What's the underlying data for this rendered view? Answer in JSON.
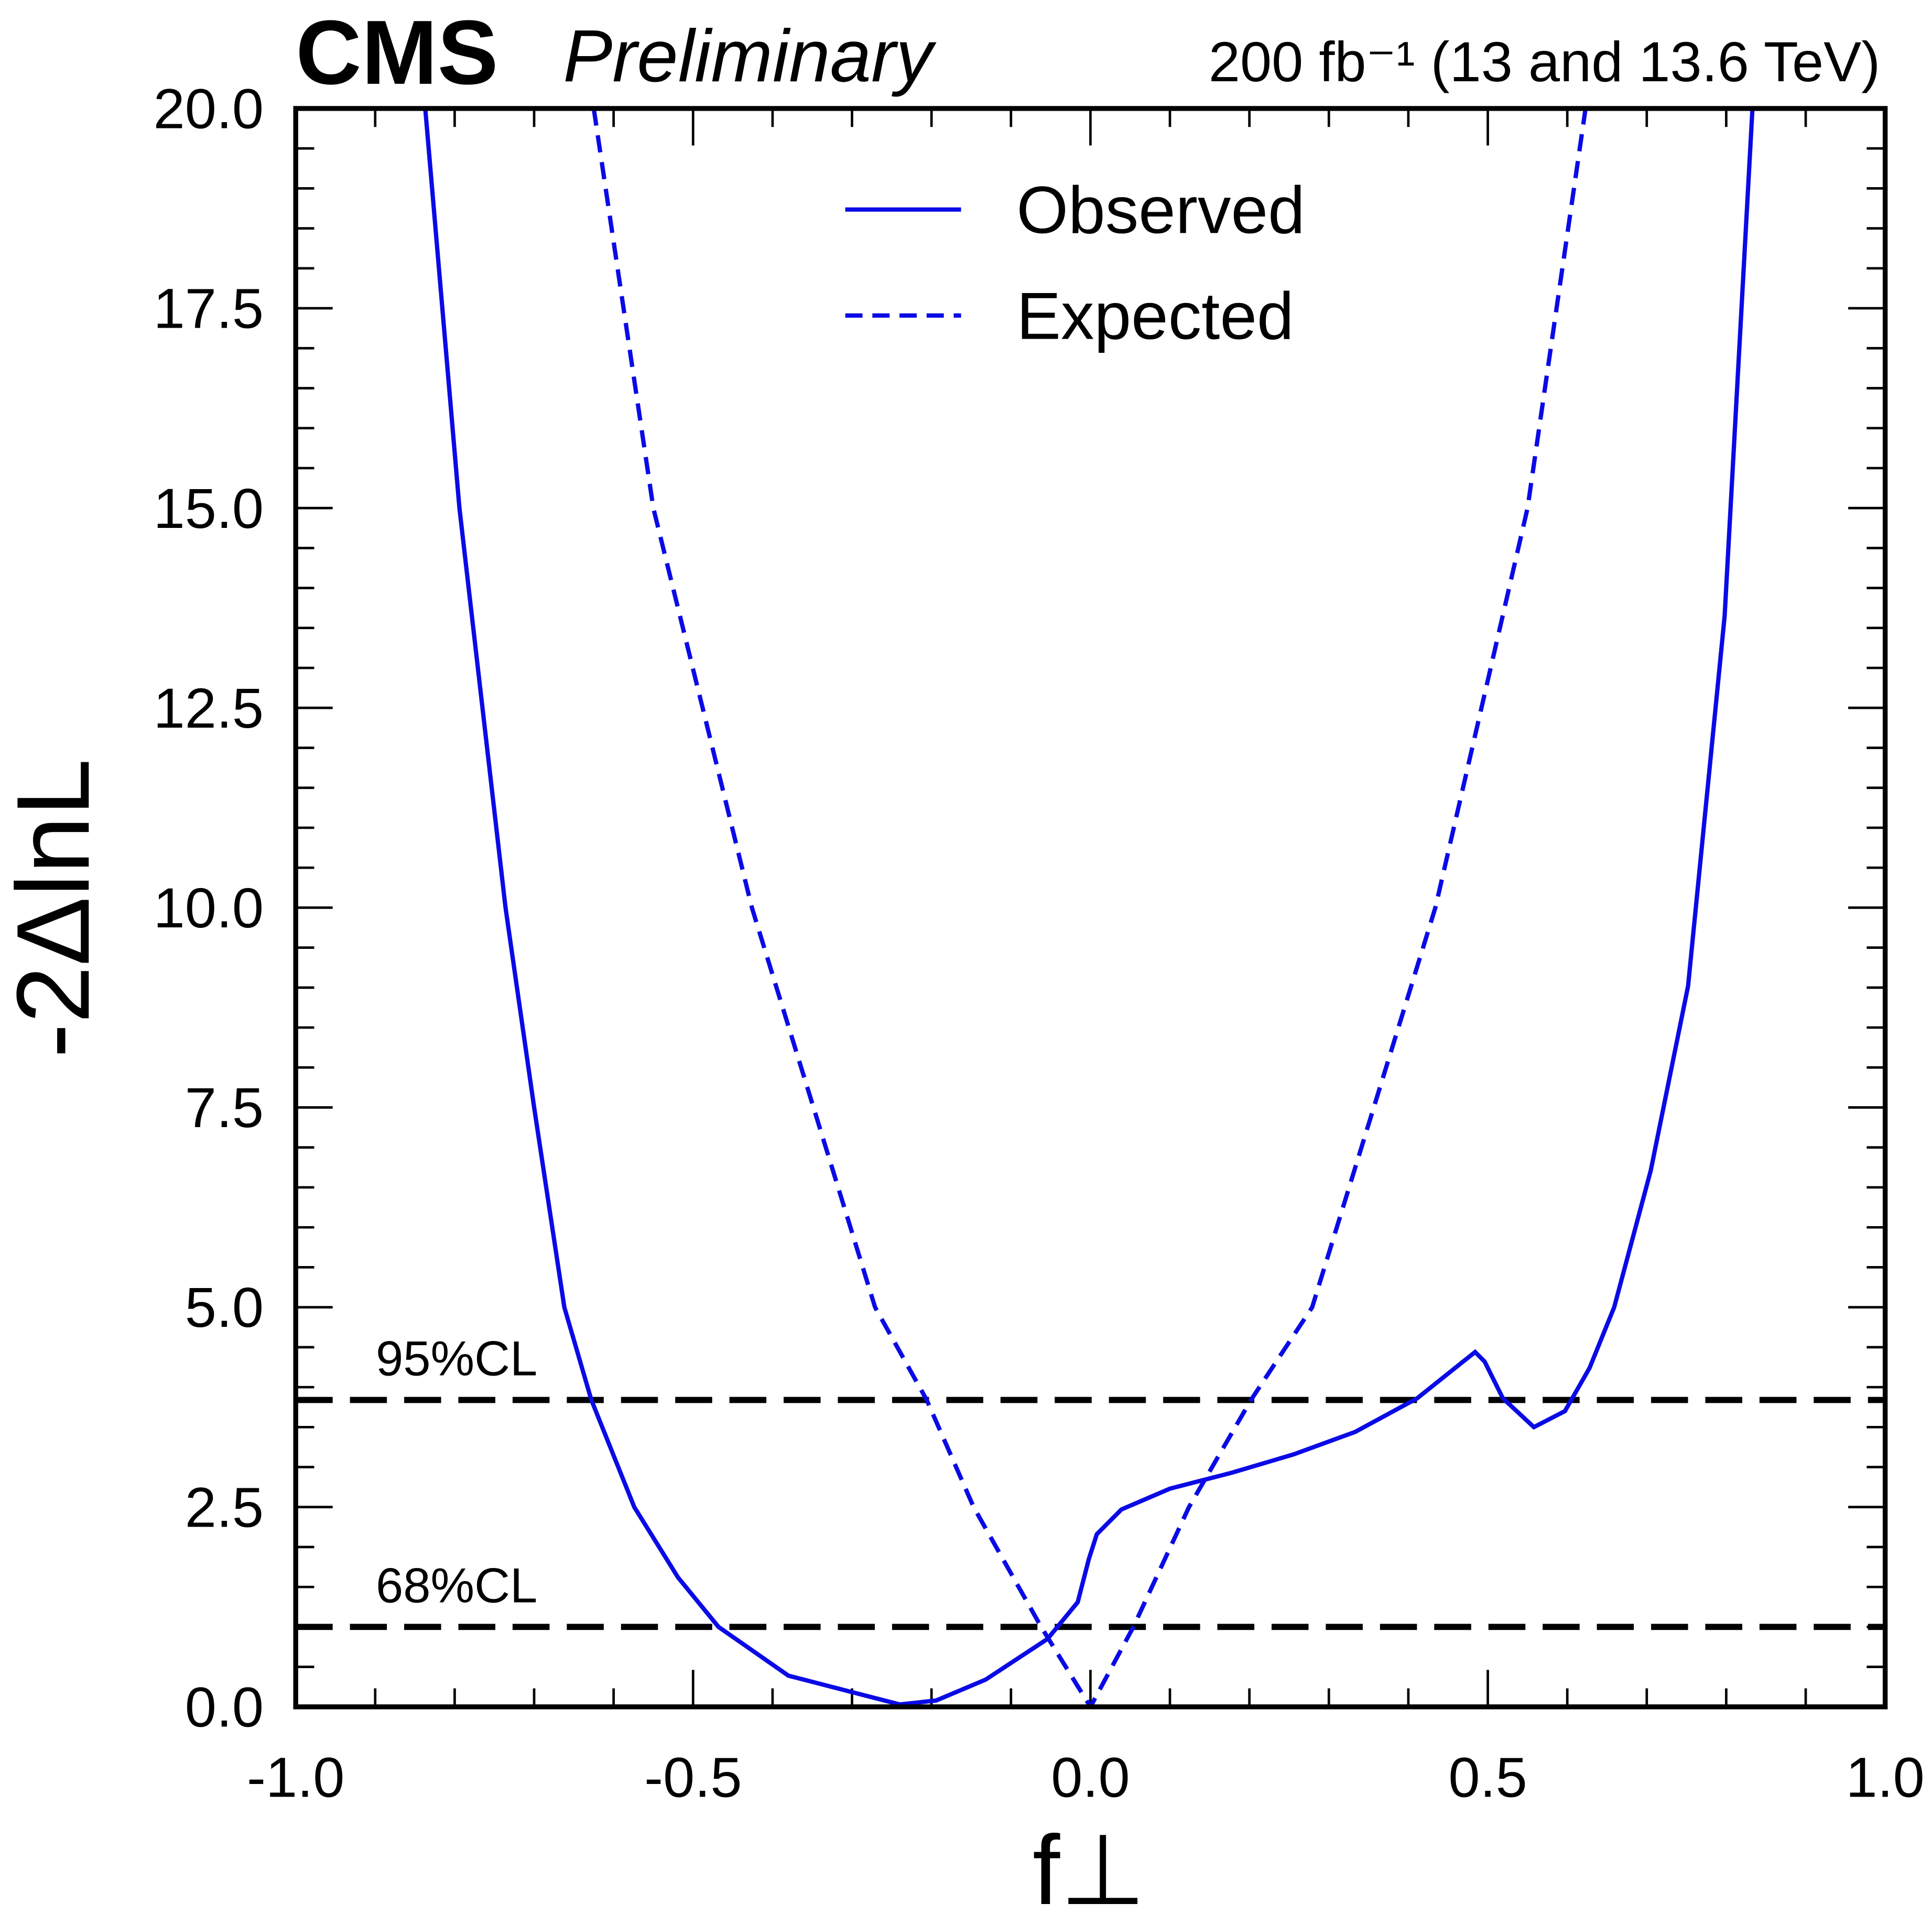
{
  "chart_data": {
    "type": "line",
    "experiment": "CMS",
    "status": "Preliminary",
    "lumi": "200 fb⁻¹ (13 and 13.6 TeV)",
    "xlabel": "f⊥",
    "ylabel": "-2ΔlnL",
    "xlim": [
      -1,
      1
    ],
    "ylim": [
      0,
      20
    ],
    "xticks": [
      {
        "value": -1,
        "label": "-1.0"
      },
      -0.5,
      {
        "value": 0,
        "label": "0.0"
      },
      0.5,
      {
        "value": 1,
        "label": "1.0"
      }
    ],
    "yticks": [
      {
        "value": 0,
        "label": "0.0"
      },
      2.5,
      {
        "value": 5,
        "label": "5.0"
      },
      7.5,
      {
        "value": 10,
        "label": "10.0"
      },
      12.5,
      {
        "value": 15,
        "label": "15.0"
      },
      17.5,
      {
        "value": 20,
        "label": "20.0"
      }
    ],
    "legend": "upper center",
    "hlines": [
      {
        "value": 3.84,
        "label": "95%CL"
      },
      {
        "value": 1,
        "label": "68%CL"
      }
    ],
    "series": [
      {
        "name": "Observed",
        "color": "#0a0ae6",
        "linestyle": "solid",
        "x": [
          -0.837,
          -0.794,
          -0.736,
          -0.7,
          -0.662,
          -0.628,
          -0.574,
          -0.519,
          -0.468,
          -0.38,
          -0.24,
          -0.194,
          -0.132,
          -0.054,
          -0.016,
          -0.002,
          0.008,
          0.039,
          0.1,
          0.178,
          0.256,
          0.333,
          0.411,
          0.484,
          0.496,
          0.519,
          0.558,
          0.597,
          0.628,
          0.659,
          0.705,
          0.752,
          0.798,
          0.833
        ],
        "values": [
          20,
          15,
          10,
          7.5,
          5,
          3.84,
          2.5,
          1.62,
          1,
          0.39,
          0.03,
          0.08,
          0.34,
          0.85,
          1.31,
          1.85,
          2.16,
          2.47,
          2.73,
          2.93,
          3.16,
          3.44,
          3.86,
          4.44,
          4.32,
          3.86,
          3.5,
          3.7,
          4.24,
          5,
          6.71,
          9.02,
          13.65,
          20
        ]
      },
      {
        "name": "Expected",
        "color": "#0a0ae6",
        "linestyle": "dashed",
        "x": [
          -0.625,
          -0.55,
          -0.426,
          -0.271,
          -0.206,
          -0.147,
          -0.062,
          0,
          0.054,
          0.124,
          0.202,
          0.279,
          0.434,
          0.55,
          0.623
        ],
        "values": [
          20,
          15,
          10,
          5,
          3.84,
          2.5,
          1,
          0,
          1,
          2.5,
          3.84,
          5,
          10,
          15,
          20
        ]
      }
    ]
  }
}
